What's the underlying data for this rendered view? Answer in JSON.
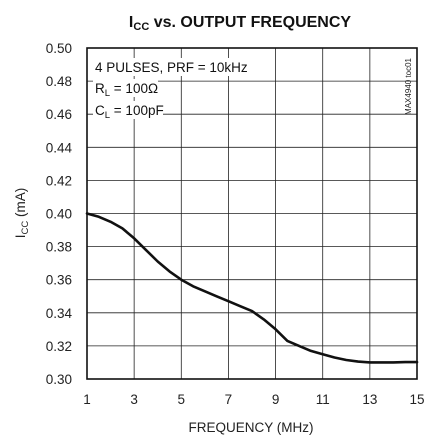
{
  "chart_data": {
    "type": "line",
    "title": {
      "main": "I",
      "sub": "CC",
      "rest": " vs. OUTPUT FREQUENCY"
    },
    "xlabel": "FREQUENCY (MHz)",
    "ylabel": {
      "main": "I",
      "sub": "CC",
      "rest": " (mA)"
    },
    "xlim": [
      1,
      15
    ],
    "ylim": [
      0.3,
      0.5
    ],
    "x_ticks": [
      "1",
      "3",
      "5",
      "7",
      "9",
      "11",
      "13",
      "15"
    ],
    "y_ticks": [
      "0.50",
      "0.48",
      "0.46",
      "0.44",
      "0.42",
      "0.40",
      "0.38",
      "0.36",
      "0.34",
      "0.32",
      "0.30"
    ],
    "grid": true,
    "annotations": {
      "line1": "4 PULSES, PRF = 10kHz",
      "line2": {
        "main": "R",
        "sub": "L",
        "rest": " = 100Ω"
      },
      "line3": {
        "main": "C",
        "sub": "L",
        "rest": " = 100pF"
      }
    },
    "figure_code": "MAX4940 toc01",
    "series": [
      {
        "x": [
          1,
          1.5,
          2,
          2.5,
          3,
          3.5,
          4,
          4.5,
          5,
          5.5,
          6,
          6.5,
          7,
          7.5,
          8,
          8.5,
          9,
          9.5,
          10,
          10.5,
          11,
          11.5,
          12,
          12.5,
          13,
          13.5,
          14,
          14.5,
          15
        ],
        "values": [
          0.4,
          0.398,
          0.395,
          0.391,
          0.385,
          0.378,
          0.371,
          0.365,
          0.36,
          0.356,
          0.353,
          0.35,
          0.347,
          0.344,
          0.341,
          0.336,
          0.33,
          0.323,
          0.32,
          0.317,
          0.315,
          0.313,
          0.3115,
          0.3105,
          0.31,
          0.31,
          0.31,
          0.3102,
          0.3102
        ]
      }
    ]
  }
}
